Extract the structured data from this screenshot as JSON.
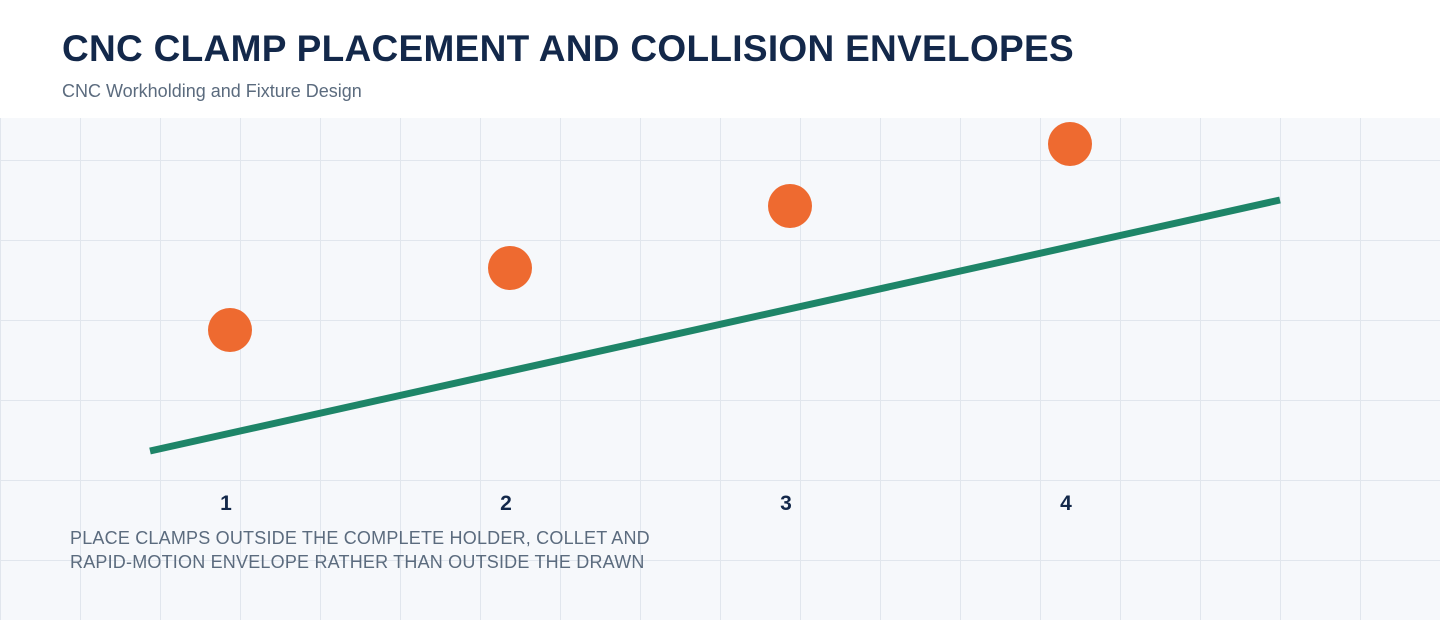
{
  "header": {
    "title": "CNC CLAMP PLACEMENT AND COLLISION ENVELOPES",
    "subtitle": "CNC Workholding and Fixture Design"
  },
  "diagram": {
    "markers": [
      {
        "label": "1"
      },
      {
        "label": "2"
      },
      {
        "label": "3"
      },
      {
        "label": "4"
      }
    ],
    "colors": {
      "marker": "#ee6a30",
      "line": "#1e8568",
      "label": "#13284a"
    }
  },
  "note": {
    "line1": "PLACE CLAMPS OUTSIDE THE COMPLETE HOLDER, COLLET AND",
    "line2": "RAPID-MOTION ENVELOPE RATHER THAN OUTSIDE THE DRAWN"
  }
}
